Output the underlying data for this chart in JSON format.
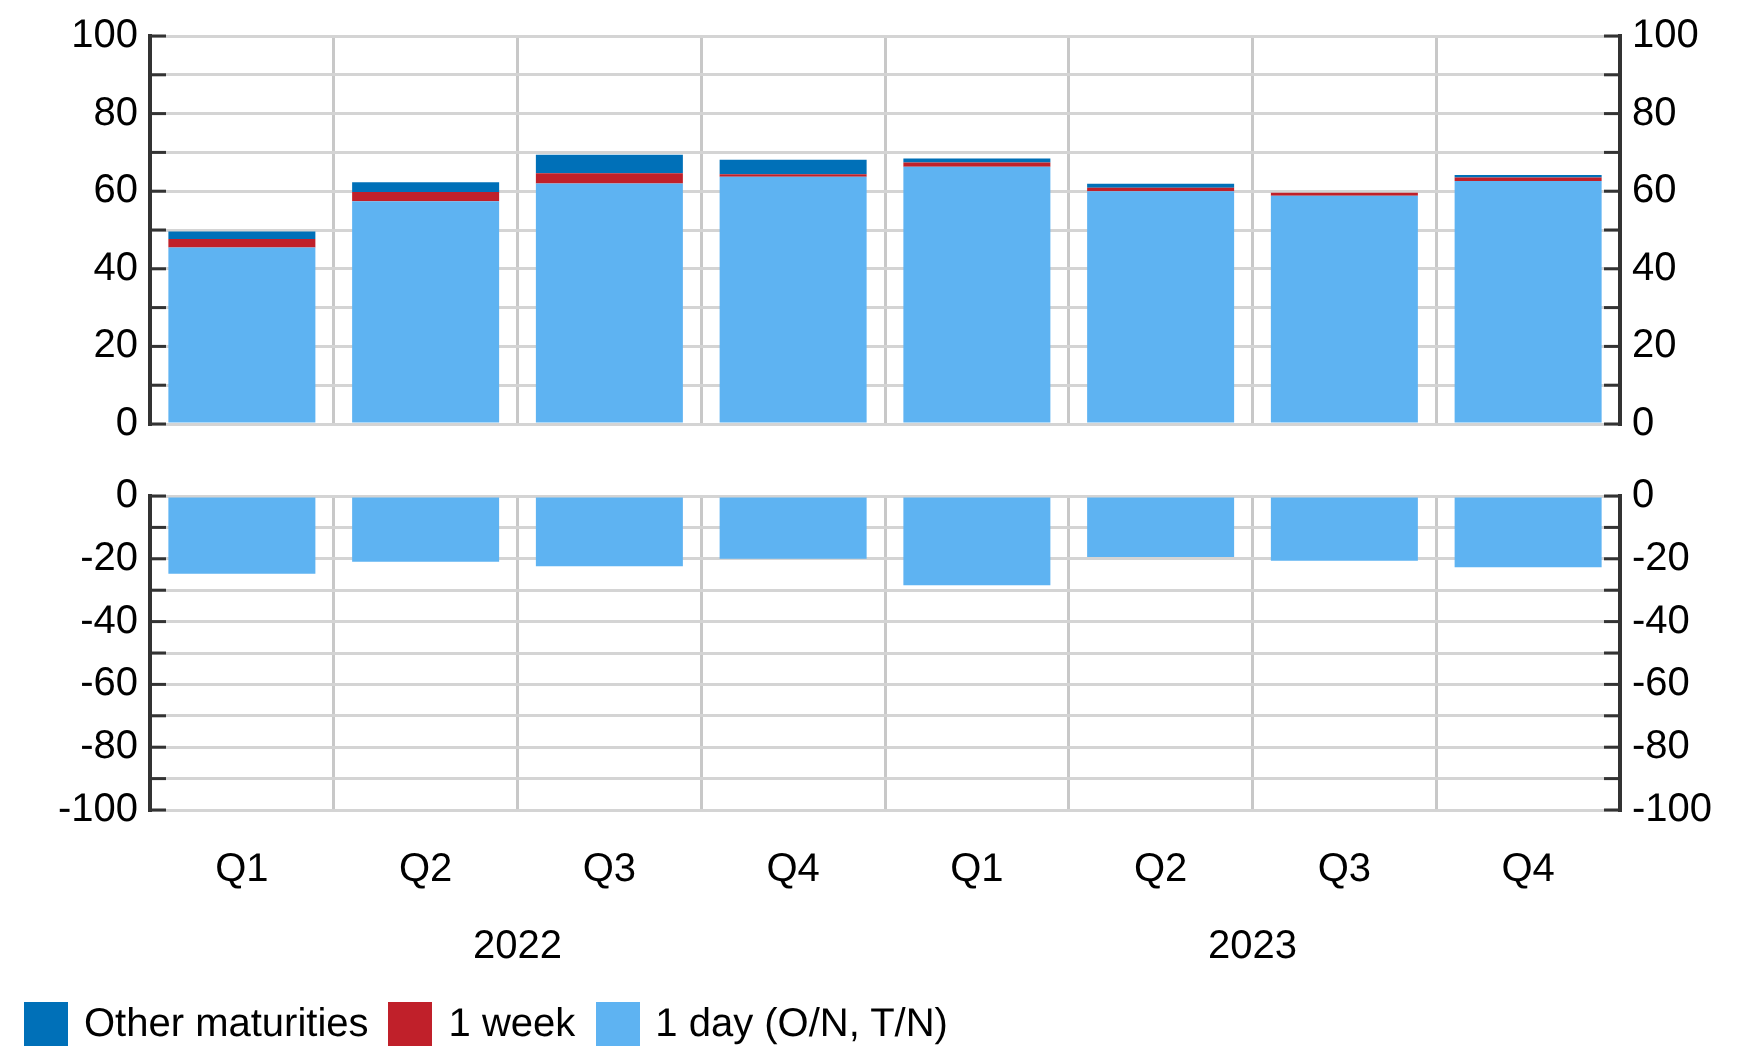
{
  "chart_data": [
    {
      "type": "bar",
      "stacked": true,
      "categories": [
        null,
        null,
        null,
        null,
        null,
        null,
        null,
        null
      ],
      "series": [
        {
          "name": "1 day (O/N, T/N)",
          "color": "#5eb3f2",
          "values": [
            45.5,
            57.4,
            62,
            63.7,
            66.3,
            60,
            58.8,
            62.6
          ]
        },
        {
          "name": "1 week",
          "color": "#c0202a",
          "values": [
            2.2,
            2.4,
            2.6,
            0.7,
            1.1,
            0.9,
            0.8,
            0.9
          ]
        },
        {
          "name": "Other maturities",
          "color": "#0070b8",
          "values": [
            1.9,
            2.5,
            4.8,
            3.7,
            1,
            1,
            null,
            0.7
          ]
        }
      ],
      "ylim": [
        0,
        100
      ],
      "yticks": [
        0,
        {
          "value": 10,
          "label": null
        },
        20,
        {
          "value": 30,
          "label": null
        },
        40,
        {
          "value": 50,
          "label": null
        },
        60,
        {
          "value": 70,
          "label": null
        },
        80,
        {
          "value": 90,
          "label": null
        },
        100
      ],
      "y2lim": [
        0,
        100
      ],
      "y2ticks": [
        0,
        {
          "value": 10,
          "label": null
        },
        20,
        {
          "value": 30,
          "label": null
        },
        40,
        {
          "value": 50,
          "label": null
        },
        60,
        {
          "value": 70,
          "label": null
        },
        80,
        {
          "value": 90,
          "label": null
        },
        100
      ],
      "grid": true,
      "legend": "bottom",
      "tick_labels": "y"
    },
    {
      "type": "bar",
      "categories": [
        "Q1",
        "Q2",
        "Q3",
        "Q4",
        "Q1",
        "Q2",
        "Q3",
        "Q4"
      ],
      "series": [
        {
          "color": "#5eb3f2",
          "values": [
            -24.8,
            -20.9,
            -22.4,
            -20,
            -28.4,
            -19.4,
            -20.6,
            -22.7
          ]
        }
      ],
      "ylim": [
        -100,
        0
      ],
      "yticks": [
        -100,
        {
          "value": -90,
          "label": null
        },
        -80,
        {
          "value": -70,
          "label": null
        },
        -60,
        {
          "value": -50,
          "label": null
        },
        -40,
        {
          "value": -30,
          "label": null
        },
        -20,
        {
          "value": -10,
          "label": null
        },
        0
      ],
      "y2lim": [
        -100,
        0
      ],
      "y2ticks": [
        -100,
        {
          "value": -90,
          "label": null
        },
        -80,
        {
          "value": -70,
          "label": null
        },
        -60,
        {
          "value": -50,
          "label": null
        },
        -40,
        {
          "value": -30,
          "label": null
        },
        -20,
        {
          "value": -10,
          "label": null
        },
        0
      ],
      "grid": true,
      "annotations": [
        "2022",
        "2023"
      ]
    }
  ]
}
